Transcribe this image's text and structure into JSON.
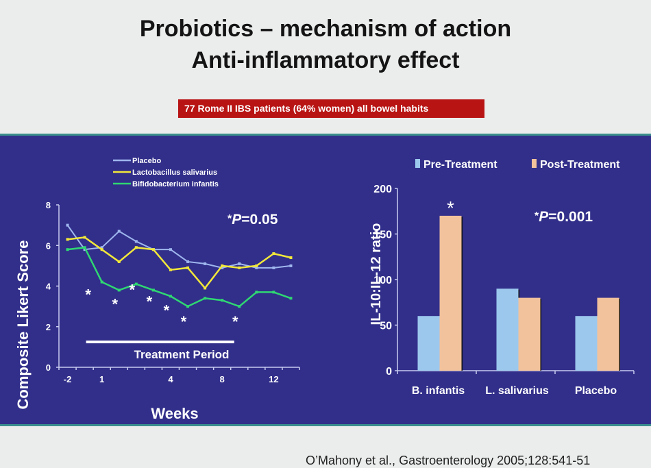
{
  "slide": {
    "title_line1": "Probiotics – mechanism of action",
    "title_line2": "Anti-inflammatory effect",
    "banner": "77 Rome II IBS patients (64% women) all bowel habits",
    "citation": "O’Mahony et al., Gastroenterology 2005;128:541-51",
    "colors": {
      "panel": "#322f8a",
      "banner": "#b81414",
      "accent_border": "#3a8f8c"
    }
  },
  "chart_data": [
    {
      "type": "line",
      "title": "",
      "xlabel": "Weeks",
      "ylabel": "Composite Likert Score",
      "ylim": [
        0,
        8
      ],
      "yticks": [
        "0",
        "2",
        "4",
        "6",
        "8"
      ],
      "xtick_labels": [
        {
          "index": 0,
          "label": "-2"
        },
        {
          "index": 2,
          "label": "1"
        },
        {
          "index": 6,
          "label": "4"
        },
        {
          "index": 9,
          "label": "8"
        },
        {
          "index": 12,
          "label": "12"
        }
      ],
      "n_points": 14,
      "annotation": "*P=0.05",
      "treatment_period_label": "Treatment Period",
      "treatment_period_range": [
        1.5,
        10
      ],
      "significance_marks": [
        2,
        3,
        4,
        5,
        6,
        7,
        10
      ],
      "legend_position": "top",
      "series": [
        {
          "name": "Placebo",
          "color": "#9fb6ee",
          "values": [
            7.0,
            5.8,
            5.9,
            6.7,
            6.2,
            5.8,
            5.8,
            5.2,
            5.1,
            4.9,
            5.1,
            4.9,
            4.9,
            5.0
          ]
        },
        {
          "name": "Lactobacillus salivarius",
          "color": "#f2e83a",
          "values": [
            6.3,
            6.4,
            5.8,
            5.2,
            5.9,
            5.8,
            4.8,
            4.9,
            3.9,
            5.0,
            4.9,
            5.0,
            5.6,
            5.4
          ]
        },
        {
          "name": "Bifidobacterium infantis",
          "color": "#2fd872",
          "values": [
            5.8,
            5.9,
            4.2,
            3.8,
            4.1,
            3.8,
            3.5,
            3.0,
            3.4,
            3.3,
            3.0,
            3.7,
            3.7,
            3.4
          ]
        }
      ]
    },
    {
      "type": "bar",
      "title": "",
      "xlabel": "",
      "ylabel": "IL-10:IL-12 ratio",
      "ylim": [
        0,
        200
      ],
      "yticks": [
        "0",
        "50",
        "100",
        "150",
        "200"
      ],
      "categories": [
        "B. infantis",
        "L. salivarius",
        "Placebo"
      ],
      "annotation": "*P=0.001",
      "significance_marks": [
        {
          "category": 0,
          "series": 1
        }
      ],
      "legend_position": "top",
      "series": [
        {
          "name": "Pre-Treatment",
          "color": "#9cc8ee",
          "values": [
            60,
            90,
            60
          ]
        },
        {
          "name": "Post-Treatment",
          "color": "#f2c29c",
          "values": [
            170,
            80,
            80
          ]
        }
      ]
    }
  ]
}
